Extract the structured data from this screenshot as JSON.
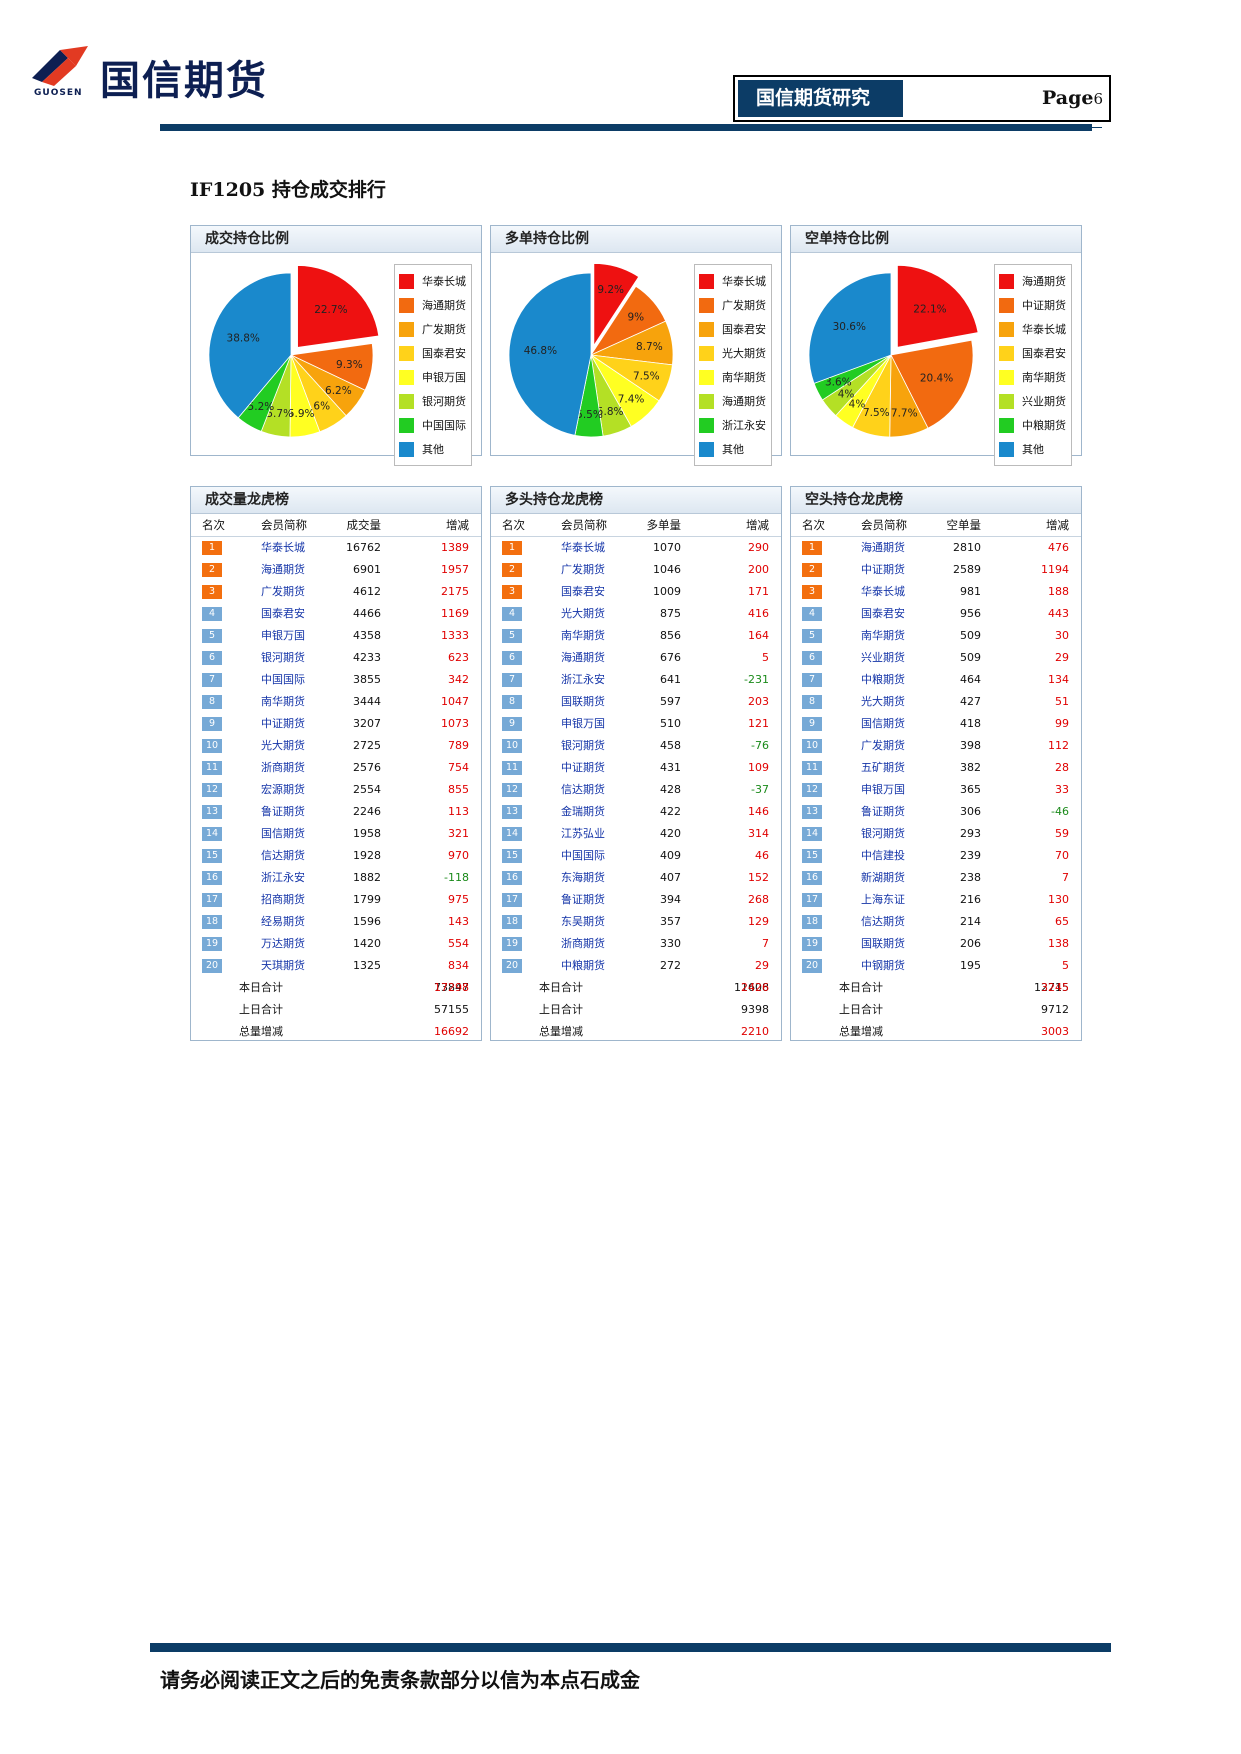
{
  "header": {
    "brand_cn": "国信期货",
    "brand_en": "GUOSEN",
    "research_label": "国信期货研究",
    "page_prefix": "Page",
    "page_number": "6"
  },
  "section_title": "IF1205 持仓成交排行",
  "colors": {
    "palette": [
      "#ee1111",
      "#f26a10",
      "#f7a30c",
      "#ffd21a",
      "#ffff22",
      "#b4e025",
      "#22cc22",
      "#1a89cc"
    ],
    "header_navy": "#0c3c66"
  },
  "pie_panels": [
    {
      "title": "成交持仓比例",
      "legend": [
        "华泰长城",
        "海通期货",
        "广发期货",
        "国泰君安",
        "申银万国",
        "银河期货",
        "中国国际",
        "其他"
      ],
      "chart_data": {
        "type": "pie",
        "labels": [
          "华泰长城",
          "海通期货",
          "广发期货",
          "国泰君安",
          "申银万国",
          "银河期货",
          "中国国际",
          "其他"
        ],
        "values": [
          22.7,
          9.3,
          6.2,
          6,
          5.9,
          5.7,
          5.2,
          38.8
        ],
        "value_labels": [
          "22.7%",
          "9.3%",
          "6.2%",
          "6%",
          "5.9%",
          "5.7%",
          "5.2%",
          "38.8%"
        ],
        "exploded_index": 0,
        "legend_position": "right"
      }
    },
    {
      "title": "多单持仓比例",
      "legend": [
        "华泰长城",
        "广发期货",
        "国泰君安",
        "光大期货",
        "南华期货",
        "海通期货",
        "浙江永安",
        "其他"
      ],
      "chart_data": {
        "type": "pie",
        "labels": [
          "华泰长城",
          "广发期货",
          "国泰君安",
          "光大期货",
          "南华期货",
          "海通期货",
          "浙江永安",
          "其他"
        ],
        "values": [
          9.2,
          9,
          8.7,
          7.5,
          7.4,
          5.8,
          5.5,
          46.8
        ],
        "value_labels": [
          "9.2%",
          "9%",
          "8.7%",
          "7.5%",
          "7.4%",
          "5.8%",
          "5.5%",
          "46.8%"
        ],
        "exploded_index": 0,
        "legend_position": "right"
      }
    },
    {
      "title": "空单持仓比例",
      "legend": [
        "海通期货",
        "中证期货",
        "华泰长城",
        "国泰君安",
        "南华期货",
        "兴业期货",
        "中粮期货",
        "其他"
      ],
      "chart_data": {
        "type": "pie",
        "labels": [
          "海通期货",
          "中证期货",
          "华泰长城",
          "国泰君安",
          "南华期货",
          "兴业期货",
          "中粮期货",
          "其他"
        ],
        "values": [
          22.1,
          20.4,
          7.7,
          7.5,
          4,
          4,
          3.6,
          30.6
        ],
        "value_labels": [
          "22.1%",
          "20.4%",
          "7.7%",
          "7.5%",
          "4%",
          "4%",
          "3.6%",
          "30.6%"
        ],
        "exploded_index": 0,
        "legend_position": "right"
      }
    }
  ],
  "rank_tables": [
    {
      "title": "成交量龙虎榜",
      "headers": [
        "名次",
        "会员简称",
        "成交量",
        "增减"
      ],
      "rows": [
        {
          "rank": "1",
          "name": "华泰长城",
          "value": "16762",
          "delta": "1389"
        },
        {
          "rank": "2",
          "name": "海通期货",
          "value": "6901",
          "delta": "1957"
        },
        {
          "rank": "3",
          "name": "广发期货",
          "value": "4612",
          "delta": "2175"
        },
        {
          "rank": "4",
          "name": "国泰君安",
          "value": "4466",
          "delta": "1169"
        },
        {
          "rank": "5",
          "name": "申银万国",
          "value": "4358",
          "delta": "1333"
        },
        {
          "rank": "6",
          "name": "银河期货",
          "value": "4233",
          "delta": "623"
        },
        {
          "rank": "7",
          "name": "中国国际",
          "value": "3855",
          "delta": "342"
        },
        {
          "rank": "8",
          "name": "南华期货",
          "value": "3444",
          "delta": "1047"
        },
        {
          "rank": "9",
          "name": "中证期货",
          "value": "3207",
          "delta": "1073"
        },
        {
          "rank": "10",
          "name": "光大期货",
          "value": "2725",
          "delta": "789"
        },
        {
          "rank": "11",
          "name": "浙商期货",
          "value": "2576",
          "delta": "754"
        },
        {
          "rank": "12",
          "name": "宏源期货",
          "value": "2554",
          "delta": "855"
        },
        {
          "rank": "13",
          "name": "鲁证期货",
          "value": "2246",
          "delta": "113"
        },
        {
          "rank": "14",
          "name": "国信期货",
          "value": "1958",
          "delta": "321"
        },
        {
          "rank": "15",
          "name": "信达期货",
          "value": "1928",
          "delta": "970"
        },
        {
          "rank": "16",
          "name": "浙江永安",
          "value": "1882",
          "delta": "-118"
        },
        {
          "rank": "17",
          "name": "招商期货",
          "value": "1799",
          "delta": "975"
        },
        {
          "rank": "18",
          "name": "经易期货",
          "value": "1596",
          "delta": "143"
        },
        {
          "rank": "19",
          "name": "万达期货",
          "value": "1420",
          "delta": "554"
        },
        {
          "rank": "20",
          "name": "天琪期货",
          "value": "1325",
          "delta": "834"
        }
      ],
      "summary": [
        {
          "label": "本日合计",
          "value": "73847",
          "delta": "17298"
        },
        {
          "label": "上日合计",
          "value": "57155",
          "delta": ""
        },
        {
          "label": "总量增减",
          "value": "16692",
          "delta": ""
        }
      ]
    },
    {
      "title": "多头持仓龙虎榜",
      "headers": [
        "名次",
        "会员简称",
        "多单量",
        "增减"
      ],
      "rows": [
        {
          "rank": "1",
          "name": "华泰长城",
          "value": "1070",
          "delta": "290"
        },
        {
          "rank": "2",
          "name": "广发期货",
          "value": "1046",
          "delta": "200"
        },
        {
          "rank": "3",
          "name": "国泰君安",
          "value": "1009",
          "delta": "171"
        },
        {
          "rank": "4",
          "name": "光大期货",
          "value": "875",
          "delta": "416"
        },
        {
          "rank": "5",
          "name": "南华期货",
          "value": "856",
          "delta": "164"
        },
        {
          "rank": "6",
          "name": "海通期货",
          "value": "676",
          "delta": "5"
        },
        {
          "rank": "7",
          "name": "浙江永安",
          "value": "641",
          "delta": "-231"
        },
        {
          "rank": "8",
          "name": "国联期货",
          "value": "597",
          "delta": "203"
        },
        {
          "rank": "9",
          "name": "申银万国",
          "value": "510",
          "delta": "121"
        },
        {
          "rank": "10",
          "name": "银河期货",
          "value": "458",
          "delta": "-76"
        },
        {
          "rank": "11",
          "name": "中证期货",
          "value": "431",
          "delta": "109"
        },
        {
          "rank": "12",
          "name": "信达期货",
          "value": "428",
          "delta": "-37"
        },
        {
          "rank": "13",
          "name": "金瑞期货",
          "value": "422",
          "delta": "146"
        },
        {
          "rank": "14",
          "name": "江苏弘业",
          "value": "420",
          "delta": "314"
        },
        {
          "rank": "15",
          "name": "中国国际",
          "value": "409",
          "delta": "46"
        },
        {
          "rank": "16",
          "name": "东海期货",
          "value": "407",
          "delta": "152"
        },
        {
          "rank": "17",
          "name": "鲁证期货",
          "value": "394",
          "delta": "268"
        },
        {
          "rank": "18",
          "name": "东吴期货",
          "value": "357",
          "delta": "129"
        },
        {
          "rank": "19",
          "name": "浙商期货",
          "value": "330",
          "delta": "7"
        },
        {
          "rank": "20",
          "name": "中粮期货",
          "value": "272",
          "delta": "29"
        }
      ],
      "summary": [
        {
          "label": "本日合计",
          "value": "11608",
          "delta": "2426"
        },
        {
          "label": "上日合计",
          "value": "9398",
          "delta": ""
        },
        {
          "label": "总量增减",
          "value": "2210",
          "delta": ""
        }
      ]
    },
    {
      "title": "空头持仓龙虎榜",
      "headers": [
        "名次",
        "会员简称",
        "空单量",
        "增减"
      ],
      "rows": [
        {
          "rank": "1",
          "name": "海通期货",
          "value": "2810",
          "delta": "476"
        },
        {
          "rank": "2",
          "name": "中证期货",
          "value": "2589",
          "delta": "1194"
        },
        {
          "rank": "3",
          "name": "华泰长城",
          "value": "981",
          "delta": "188"
        },
        {
          "rank": "4",
          "name": "国泰君安",
          "value": "956",
          "delta": "443"
        },
        {
          "rank": "5",
          "name": "南华期货",
          "value": "509",
          "delta": "30"
        },
        {
          "rank": "6",
          "name": "兴业期货",
          "value": "509",
          "delta": "29"
        },
        {
          "rank": "7",
          "name": "中粮期货",
          "value": "464",
          "delta": "134"
        },
        {
          "rank": "8",
          "name": "光大期货",
          "value": "427",
          "delta": "51"
        },
        {
          "rank": "9",
          "name": "国信期货",
          "value": "418",
          "delta": "99"
        },
        {
          "rank": "10",
          "name": "广发期货",
          "value": "398",
          "delta": "112"
        },
        {
          "rank": "11",
          "name": "五矿期货",
          "value": "382",
          "delta": "28"
        },
        {
          "rank": "12",
          "name": "申银万国",
          "value": "365",
          "delta": "33"
        },
        {
          "rank": "13",
          "name": "鲁证期货",
          "value": "306",
          "delta": "-46"
        },
        {
          "rank": "14",
          "name": "银河期货",
          "value": "293",
          "delta": "59"
        },
        {
          "rank": "15",
          "name": "中信建投",
          "value": "239",
          "delta": "70"
        },
        {
          "rank": "16",
          "name": "新湖期货",
          "value": "238",
          "delta": "7"
        },
        {
          "rank": "17",
          "name": "上海东证",
          "value": "216",
          "delta": "130"
        },
        {
          "rank": "18",
          "name": "信达期货",
          "value": "214",
          "delta": "65"
        },
        {
          "rank": "19",
          "name": "国联期货",
          "value": "206",
          "delta": "138"
        },
        {
          "rank": "20",
          "name": "中钢期货",
          "value": "195",
          "delta": "5"
        }
      ],
      "summary": [
        {
          "label": "本日合计",
          "value": "12715",
          "delta": "3245"
        },
        {
          "label": "上日合计",
          "value": "9712",
          "delta": ""
        },
        {
          "label": "总量增减",
          "value": "3003",
          "delta": ""
        }
      ]
    }
  ],
  "footer": {
    "disclaimer": "请务必阅读正文之后的免责条款部分以信为本点石成金"
  }
}
